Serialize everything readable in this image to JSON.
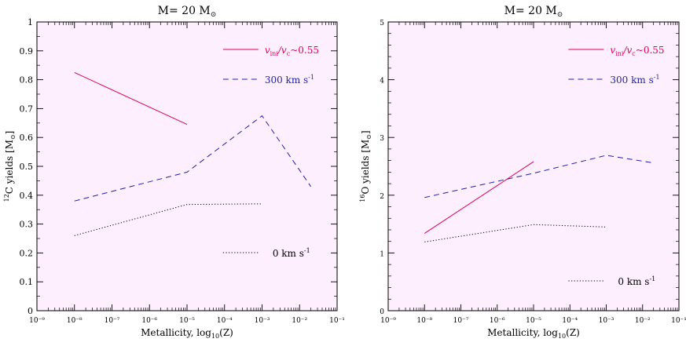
{
  "chart_data": [
    {
      "type": "line",
      "title": "M=  20 M",
      "title_symbol": "⊙",
      "xlabel": "Metallicity, log",
      "xlabel_sub": "10",
      "xlabel_tail": "(Z)",
      "ylabel": "C yields [M ]",
      "ylabel_sup": "12",
      "ylabel_symbol": "⊙",
      "x_log_scale": true,
      "xlim_exp": [
        -9,
        -1
      ],
      "ylim": [
        0,
        1
      ],
      "x_ticks": [
        "10⁻⁹",
        "10⁻⁸",
        "10⁻⁷",
        "10⁻⁶",
        "10⁻⁵",
        "10⁻⁴",
        "10⁻³",
        "10⁻²",
        "10⁻¹"
      ],
      "y_ticks": [
        "0",
        "0.1",
        "0.2",
        "0.3",
        "0.4",
        "0.5",
        "0.6",
        "0.7",
        "0.8",
        "0.9",
        "1"
      ],
      "y_tick_values": [
        0,
        0.1,
        0.2,
        0.3,
        0.4,
        0.5,
        0.6,
        0.7,
        0.8,
        0.9,
        1
      ],
      "background": "#fdeffd",
      "series": [
        {
          "name": "v_ini/v_c~0.55",
          "color": "#e0004f",
          "style": "solid",
          "x": [
            1e-08,
            1e-05
          ],
          "y": [
            0.825,
            0.645
          ]
        },
        {
          "name": "300 km s⁻¹",
          "color": "#1f1fa8",
          "style": "dashed",
          "x": [
            1e-08,
            1e-05,
            0.001,
            0.02
          ],
          "y": [
            0.38,
            0.48,
            0.675,
            0.43
          ]
        },
        {
          "name": "0 km s⁻¹",
          "color": "#000000",
          "style": "dotted",
          "x": [
            1e-08,
            1e-05,
            0.001
          ],
          "y": [
            0.26,
            0.368,
            0.37
          ]
        }
      ],
      "legend": [
        {
          "label": "v",
          "sub1": "ini",
          "slash": "/v",
          "sub2": "c",
          "tail": "~0.55",
          "color": "#e0004f",
          "style": "solid"
        },
        {
          "label": "300 km s",
          "sup": "-1",
          "color": "#1f1fa8",
          "style": "dashed"
        },
        {
          "label": "0 km s",
          "sup": "-1",
          "color": "#000000",
          "style": "dotted"
        }
      ]
    },
    {
      "type": "line",
      "title": "M=  20 M",
      "title_symbol": "⊙",
      "xlabel": "Metallicity, log",
      "xlabel_sub": "10",
      "xlabel_tail": "(Z)",
      "ylabel": "O yields [M ]",
      "ylabel_sup": "16",
      "ylabel_symbol": "⊙",
      "x_log_scale": true,
      "xlim_exp": [
        -9,
        -1
      ],
      "ylim": [
        0,
        5
      ],
      "x_ticks": [
        "10⁻⁹",
        "10⁻⁸",
        "10⁻⁷",
        "10⁻⁶",
        "10⁻⁵",
        "10⁻⁴",
        "10⁻³",
        "10⁻²",
        "10⁻¹"
      ],
      "y_ticks": [
        "0",
        "1",
        "2",
        "3",
        "4",
        "5"
      ],
      "y_tick_values": [
        0,
        1,
        2,
        3,
        4,
        5
      ],
      "background": "#fdeffd",
      "series": [
        {
          "name": "v_ini/v_c~0.55",
          "color": "#e0004f",
          "style": "solid",
          "x": [
            1e-08,
            1e-05
          ],
          "y": [
            1.34,
            2.58
          ]
        },
        {
          "name": "300 km s⁻¹",
          "color": "#1f1fa8",
          "style": "dashed",
          "x": [
            1e-08,
            1e-05,
            0.001,
            0.02
          ],
          "y": [
            1.96,
            2.38,
            2.69,
            2.56
          ]
        },
        {
          "name": "0 km s⁻¹",
          "color": "#000000",
          "style": "dotted",
          "x": [
            1e-08,
            1e-05,
            0.001
          ],
          "y": [
            1.19,
            1.49,
            1.45
          ]
        }
      ],
      "legend": [
        {
          "label": "v",
          "sub1": "ini",
          "slash": "/v",
          "sub2": "c",
          "tail": "~0.55",
          "color": "#e0004f",
          "style": "solid"
        },
        {
          "label": "300 km s",
          "sup": "-1",
          "color": "#1f1fa8",
          "style": "dashed"
        },
        {
          "label": "0 km s",
          "sup": "-1",
          "color": "#000000",
          "style": "dotted"
        }
      ]
    }
  ]
}
